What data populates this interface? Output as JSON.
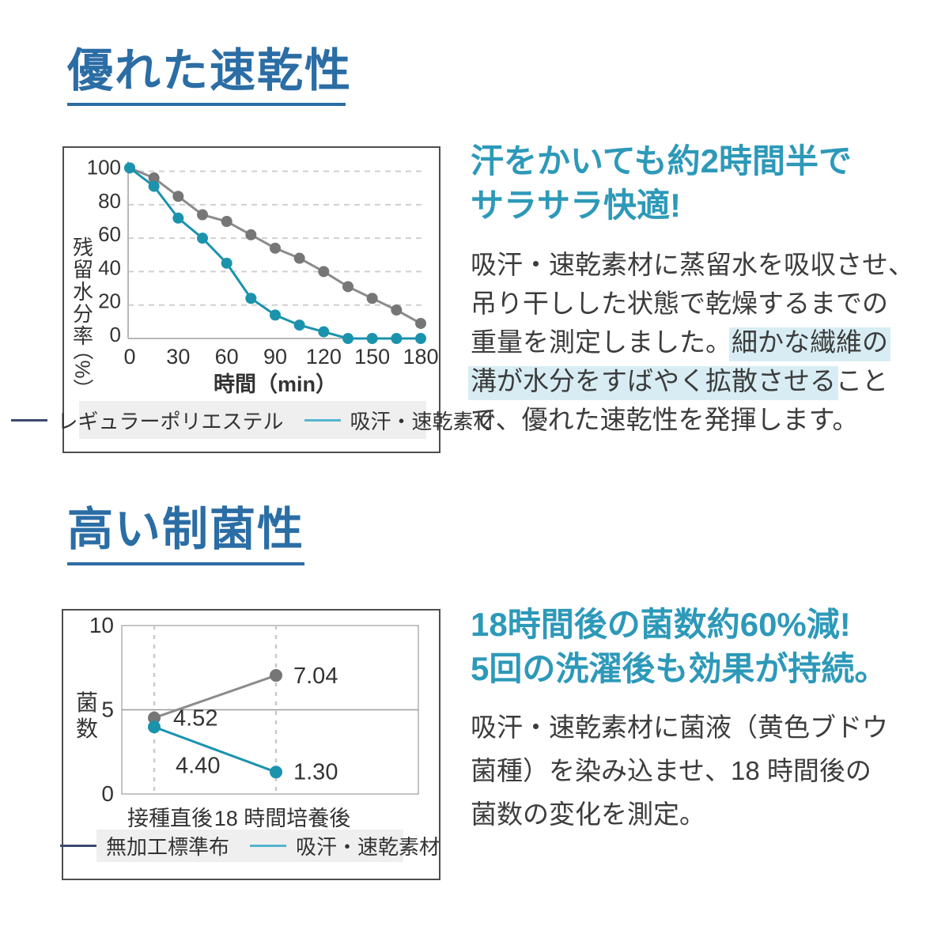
{
  "theme": {
    "title_blue": "#2b6da5",
    "headline_teal": "#2d99b9",
    "body_text_color": "#3c3c3c",
    "highlight_color": "#d8edf3",
    "chart_border_color": "#4e4e4e",
    "legend_bg": "#efefef",
    "axis_color": "#b8b8b8",
    "grid_color": "#d0d0d0"
  },
  "section_drying": {
    "title": "優れた速乾性",
    "headline": [
      "汗をかいても約2時間半で",
      "サラサラ快適!"
    ],
    "body_lines": [
      [
        {
          "text": "吸汗・速乾素材に蒸留水を吸収させ、",
          "highlight": false
        }
      ],
      [
        {
          "text": "吊り干しした状態で乾燥するまでの",
          "highlight": false
        }
      ],
      [
        {
          "text": "重量を測定しました。",
          "highlight": false
        },
        {
          "text": "細かな繊維の",
          "highlight": true
        }
      ],
      [
        {
          "text": "溝が水分をすばやく拡散させる",
          "highlight": true
        },
        {
          "text": "こと",
          "highlight": false
        }
      ],
      [
        {
          "text": "で、優れた速乾性を発揮します。",
          "highlight": false
        }
      ]
    ]
  },
  "section_antibacterial": {
    "title": "高い制菌性",
    "headline": [
      "18時間後の菌数約60%減!",
      "5回の洗濯後も効果が持続。"
    ],
    "body_lines": [
      [
        {
          "text": "吸汗・速乾素材に菌液（黄色ブドウ",
          "highlight": false
        }
      ],
      [
        {
          "text": "菌種）を染み込ませ、18 時間後の",
          "highlight": false
        }
      ],
      [
        {
          "text": "菌数の変化を測定。",
          "highlight": false
        }
      ]
    ]
  },
  "chart_data": [
    {
      "type": "line",
      "title": "",
      "xlabel": "時間（min）",
      "ylabel": "残留水分率（%）",
      "x": [
        0,
        15,
        30,
        45,
        60,
        75,
        90,
        105,
        120,
        135,
        150,
        165,
        180
      ],
      "xticks": [
        0,
        30,
        60,
        90,
        120,
        150,
        180
      ],
      "yticks": [
        0,
        20,
        40,
        60,
        80,
        100
      ],
      "ylim": [
        0,
        105
      ],
      "xlim": [
        0,
        180
      ],
      "grid": "dashed-horizontal",
      "legend_position": "bottom",
      "series": [
        {
          "name": "レギュラーポリエステル",
          "line_color": "#8b8b8b",
          "marker_color": "#767676",
          "legend_color": "#3d4a6e",
          "values": [
            102,
            96,
            85,
            74,
            70,
            62,
            54,
            48,
            40,
            31,
            24,
            17,
            9
          ]
        },
        {
          "name": "吸汗・速乾素材",
          "line_color": "#1b93ad",
          "marker_color": "#1b93ad",
          "legend_color": "#55b5d0",
          "values": [
            102,
            91,
            72,
            60,
            45,
            24,
            14,
            8,
            4,
            0,
            0,
            0,
            0
          ]
        }
      ]
    },
    {
      "type": "line",
      "title": "",
      "xlabel": "",
      "ylabel": "菌数",
      "categories": [
        "接種直後",
        "18 時間培養後"
      ],
      "yticks": [
        0,
        5,
        10
      ],
      "ylim": [
        0,
        10
      ],
      "grid": "dashed-vertical",
      "legend_position": "bottom",
      "series": [
        {
          "name": "無加工標準布",
          "line_color": "#8b8b8b",
          "marker_color": "#767676",
          "legend_color": "#3d4a6e",
          "values": [
            4.52,
            7.04
          ],
          "point_labels": [
            "4.52",
            "7.04"
          ]
        },
        {
          "name": "吸汗・速乾素材",
          "line_color": "#1b93ad",
          "marker_color": "#1b93ad",
          "legend_color": "#55b5d0",
          "values": [
            4.4,
            1.3
          ],
          "point_labels": [
            "4.40",
            "1.30"
          ]
        }
      ]
    }
  ]
}
